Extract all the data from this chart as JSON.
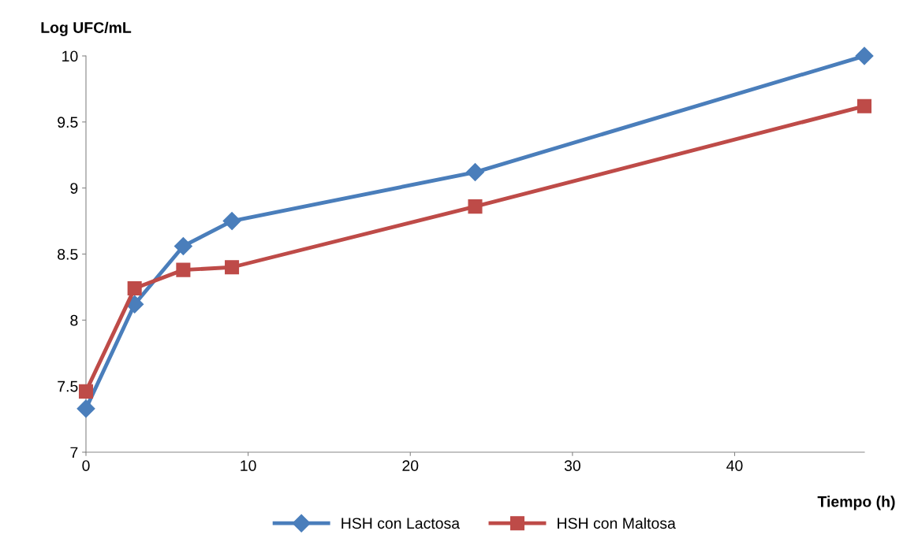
{
  "chart_data": {
    "type": "line",
    "xlabel": "Tiempo (h)",
    "ylabel": "Log UFC/mL",
    "x": [
      0,
      3,
      6,
      9,
      24,
      48
    ],
    "series": [
      {
        "name": "HSH con Lactosa",
        "color": "#4a7ebb",
        "marker": "diamond",
        "values": [
          7.33,
          8.12,
          8.56,
          8.75,
          9.12,
          10.0
        ]
      },
      {
        "name": "HSH con Maltosa",
        "color": "#be4b48",
        "marker": "square",
        "values": [
          7.46,
          8.24,
          8.38,
          8.4,
          8.86,
          9.62
        ]
      }
    ],
    "xlim": [
      0,
      48
    ],
    "xticks": [
      0,
      10,
      20,
      30,
      40
    ],
    "ylim": [
      7,
      10
    ],
    "yticks": [
      7,
      {
        "value": 7.5,
        "label": "7.5"
      },
      8,
      {
        "value": 8.5,
        "label": "8.5"
      },
      9,
      {
        "value": 9.5,
        "label": "9.5"
      },
      10
    ],
    "grid": false,
    "legend": "bottom",
    "line_style": "solid"
  }
}
